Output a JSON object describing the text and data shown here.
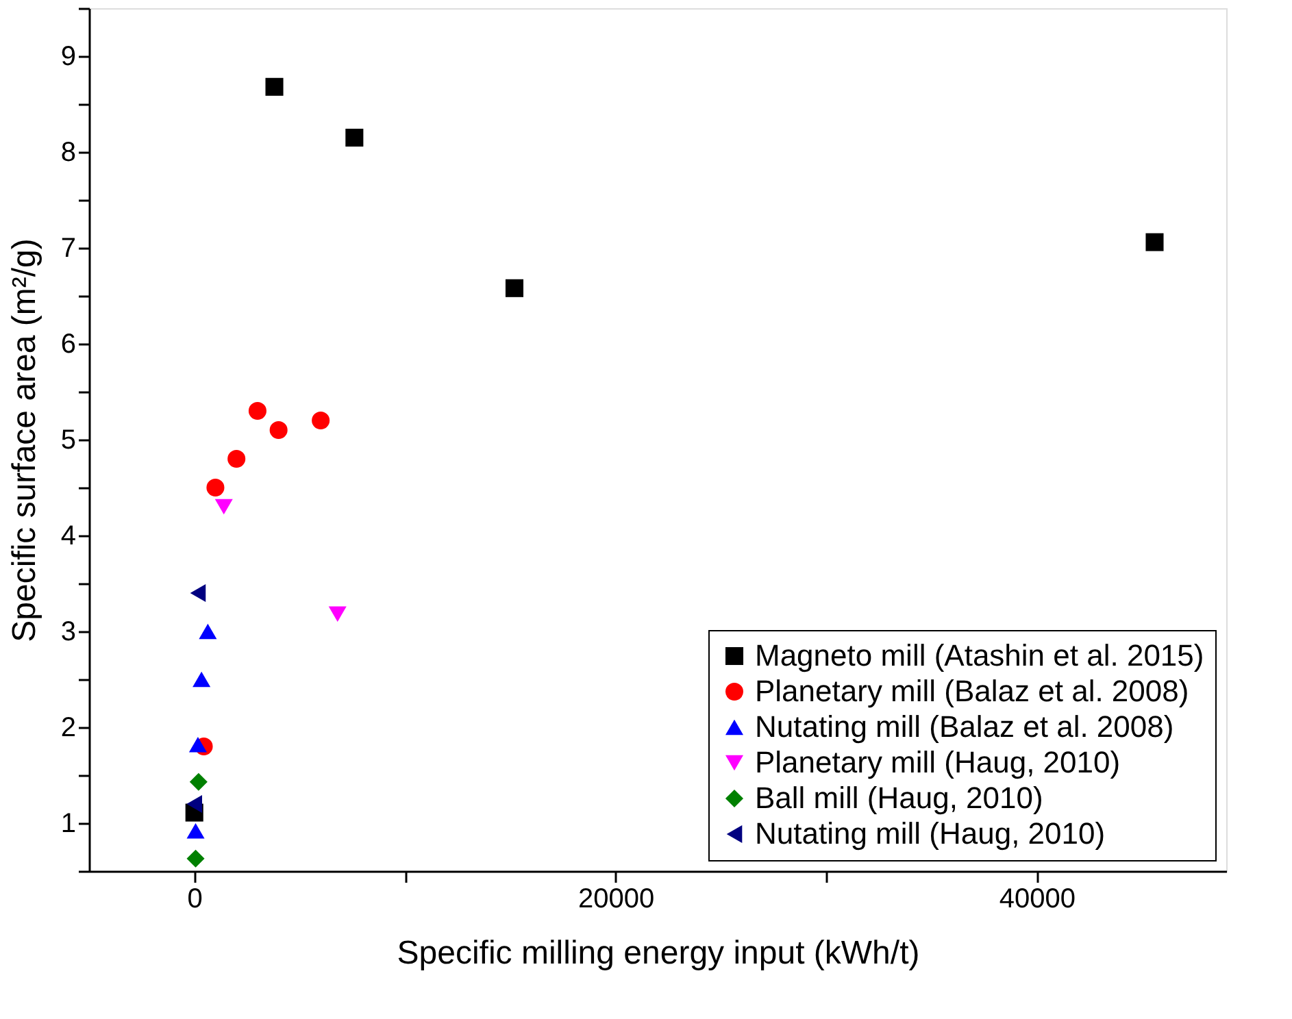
{
  "chart_data": {
    "type": "scatter",
    "xlabel": "Specific milling energy input (kWh/t)",
    "ylabel": "Specific surface area (m²/g)",
    "xlim": [
      -5000,
      49000
    ],
    "ylim": [
      0.5,
      9.5
    ],
    "xticks": [
      0,
      {
        "value": 10000,
        "label": null
      },
      20000,
      {
        "value": 30000,
        "label": null
      },
      40000
    ],
    "yticks": [
      {
        "value": 0.5,
        "label": null
      },
      1,
      {
        "value": 1.5,
        "label": null
      },
      2,
      {
        "value": 2.5,
        "label": null
      },
      3,
      {
        "value": 3.5,
        "label": null
      },
      4,
      {
        "value": 4.5,
        "label": null
      },
      5,
      {
        "value": 5.5,
        "label": null
      },
      6,
      {
        "value": 6.5,
        "label": null
      },
      7,
      {
        "value": 7.5,
        "label": null
      },
      8,
      {
        "value": 8.5,
        "label": null
      },
      9,
      {
        "value": 9.5,
        "label": null
      }
    ],
    "grid": false,
    "legend": "bottom right",
    "series": [
      {
        "name": "Magneto mill (Atashin et al. 2015)",
        "color": "#000000",
        "marker": "square",
        "x": [
          3800,
          7600,
          15200,
          45600,
          0
        ],
        "values": [
          8.68,
          8.15,
          6.58,
          7.06,
          1.11
        ]
      },
      {
        "name": "Planetary mill (Balaz et al. 2008)",
        "color": "#ff0000",
        "marker": "circle",
        "x": [
          1000,
          2000,
          3000,
          4000,
          6000,
          450
        ],
        "values": [
          4.5,
          4.8,
          5.3,
          5.1,
          5.2,
          1.8
        ]
      },
      {
        "name": "Nutating mill (Balaz et al. 2008)",
        "color": "#0000ff",
        "marker": "triangle-up",
        "x": [
          640,
          340,
          170,
          60
        ],
        "values": [
          3.0,
          2.5,
          1.82,
          0.92
        ]
      },
      {
        "name": "Planetary mill (Haug, 2010)",
        "color": "#ff00ff",
        "marker": "triangle-down",
        "x": [
          1400,
          6800
        ],
        "values": [
          4.3,
          3.18
        ]
      },
      {
        "name": "Ball mill (Haug, 2010)",
        "color": "#008000",
        "marker": "diamond",
        "x": [
          200,
          60
        ],
        "values": [
          1.43,
          0.63
        ]
      },
      {
        "name": "Nutating mill (Haug, 2010)",
        "color": "#000080",
        "marker": "triangle-left",
        "x": [
          170,
          0
        ],
        "values": [
          3.4,
          1.2
        ]
      }
    ]
  }
}
